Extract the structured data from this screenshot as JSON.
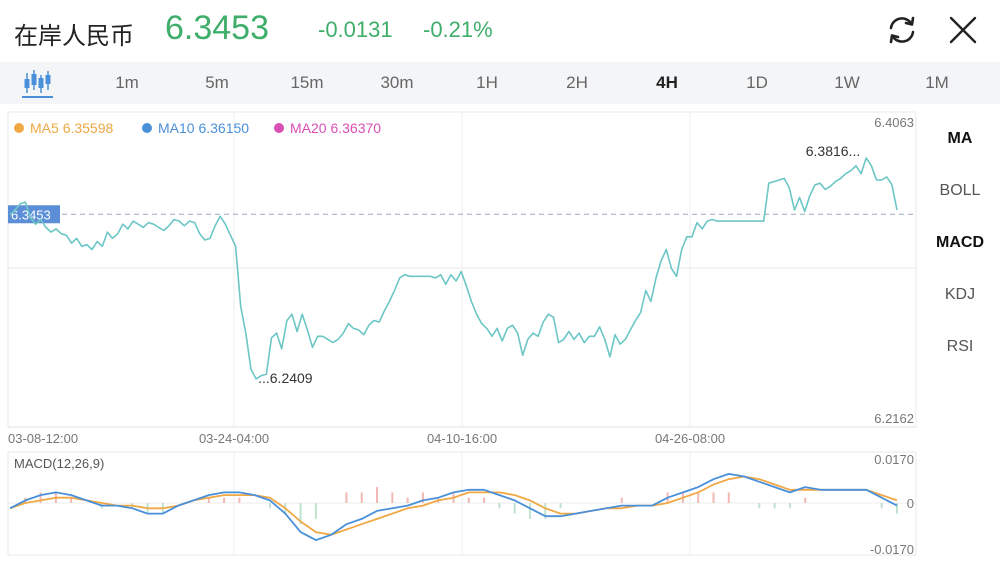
{
  "header": {
    "title": "在岸人民币",
    "price": "6.3453",
    "change": "-0.0131",
    "change_pct": "-0.21%",
    "refresh_icon": "refresh-icon",
    "close_icon": "close-icon"
  },
  "tabs": {
    "candle_icon": "candlestick-icon",
    "items": [
      "1m",
      "5m",
      "15m",
      "30m",
      "1H",
      "2H",
      "4H",
      "1D",
      "1W",
      "1M"
    ],
    "active": "4H"
  },
  "indicators": {
    "items": [
      "MA",
      "BOLL",
      "MACD",
      "KDJ",
      "RSI"
    ],
    "active": [
      "MA",
      "MACD"
    ]
  },
  "colors": {
    "up_green": "#3fae6a",
    "price_line": "#6cc6c6",
    "ma5": "#f0a845",
    "ma10": "#4a90d9",
    "ma20": "#d94fb5",
    "current_price_tag": "#5b8ed6"
  },
  "chart_data": [
    {
      "type": "line",
      "legend": [
        {
          "name": "MA5",
          "value": "6.35598"
        },
        {
          "name": "MA10",
          "value": "6.36150"
        },
        {
          "name": "MA20",
          "value": "6.36370"
        }
      ],
      "ylim": [
        6.2162,
        6.4063
      ],
      "ylim_labels": [
        "6.4063",
        "6.2162"
      ],
      "current_price_label": "6.3453",
      "x_tick_labels": [
        "03-08-12:00",
        "03-24-04:00",
        "04-10-16:00",
        "04-26-08:00"
      ],
      "annotations": {
        "high": "6.3816...",
        "low": "...6.2409"
      },
      "series": [
        {
          "values": [
            6.345,
            6.348,
            6.352,
            6.353,
            6.343,
            6.339,
            6.342,
            6.337,
            6.334,
            6.336,
            6.333,
            6.332,
            6.327,
            6.33,
            6.325,
            6.326,
            6.323,
            6.328,
            6.325,
            6.334,
            6.33,
            6.333,
            6.339,
            6.336,
            6.341,
            6.339,
            6.337,
            6.34,
            6.339,
            6.337,
            6.335,
            6.338,
            6.342,
            6.341,
            6.338,
            6.341,
            6.34,
            6.333,
            6.329,
            6.33,
            6.338,
            6.344,
            6.339,
            6.332,
            6.325,
            6.287,
            6.27,
            6.247,
            6.241,
            6.243,
            6.244,
            6.267,
            6.27,
            6.26,
            6.278,
            6.282,
            6.271,
            6.282,
            6.272,
            6.261,
            6.268,
            6.268,
            6.266,
            6.264,
            6.266,
            6.27,
            6.276,
            6.273,
            6.272,
            6.269,
            6.275,
            6.278,
            6.277,
            6.284,
            6.29,
            6.297,
            6.305,
            6.307,
            6.306,
            6.306,
            6.306,
            6.306,
            6.306,
            6.305,
            6.307,
            6.301,
            6.307,
            6.303,
            6.309,
            6.3,
            6.29,
            6.282,
            6.276,
            6.273,
            6.268,
            6.273,
            6.265,
            6.273,
            6.275,
            6.27,
            6.256,
            6.266,
            6.27,
            6.268,
            6.277,
            6.282,
            6.28,
            6.264,
            6.266,
            6.271,
            6.266,
            6.27,
            6.264,
            6.268,
            6.268,
            6.274,
            6.266,
            6.255,
            6.269,
            6.263,
            6.266,
            6.272,
            6.278,
            6.283,
            6.297,
            6.29,
            6.305,
            6.316,
            6.323,
            6.311,
            6.306,
            6.323,
            6.331,
            6.331,
            6.34,
            6.336,
            6.341,
            6.342,
            6.341,
            6.341,
            6.341,
            6.341,
            6.341,
            6.341,
            6.341,
            6.341,
            6.341,
            6.341,
            6.365,
            6.366,
            6.367,
            6.368,
            6.362,
            6.348,
            6.356,
            6.347,
            6.357,
            6.364,
            6.365,
            6.361,
            6.363,
            6.366,
            6.368,
            6.371,
            6.373,
            6.376,
            6.371,
            6.381,
            6.376,
            6.367,
            6.367,
            6.369,
            6.364,
            6.348
          ]
        }
      ]
    },
    {
      "type": "line",
      "title": "MACD(12,26,9)",
      "ylim": [
        -0.017,
        0.017
      ],
      "tick_labels": [
        "0.0170",
        "0",
        "-0.0170"
      ],
      "series": [
        {
          "name": "DIF",
          "values": [
            -0.002,
            0.001,
            0.003,
            0.004,
            0.003,
            0.001,
            -0.001,
            -0.001,
            -0.002,
            -0.004,
            -0.004,
            -0.001,
            0.001,
            0.003,
            0.004,
            0.004,
            0.003,
            0.001,
            -0.004,
            -0.011,
            -0.014,
            -0.012,
            -0.008,
            -0.006,
            -0.003,
            -0.002,
            -0.001,
            0.001,
            0.002,
            0.004,
            0.005,
            0.005,
            0.003,
            0.001,
            -0.002,
            -0.005,
            -0.005,
            -0.004,
            -0.003,
            -0.002,
            -0.001,
            -0.001,
            -0.001,
            0.002,
            0.004,
            0.006,
            0.009,
            0.011,
            0.01,
            0.008,
            0.006,
            0.004,
            0.006,
            0.005,
            0.005,
            0.005,
            0.005,
            0.002,
            -0.001
          ]
        },
        {
          "name": "DEA",
          "values": [
            -0.002,
            0.0,
            0.001,
            0.002,
            0.002,
            0.001,
            0.0,
            -0.001,
            -0.001,
            -0.002,
            -0.002,
            -0.001,
            0.001,
            0.002,
            0.003,
            0.003,
            0.003,
            0.002,
            -0.002,
            -0.007,
            -0.011,
            -0.012,
            -0.01,
            -0.008,
            -0.006,
            -0.004,
            -0.002,
            -0.001,
            0.001,
            0.002,
            0.004,
            0.004,
            0.004,
            0.003,
            0.001,
            -0.002,
            -0.004,
            -0.004,
            -0.003,
            -0.002,
            -0.002,
            -0.001,
            -0.001,
            0.0,
            0.002,
            0.004,
            0.007,
            0.009,
            0.01,
            0.009,
            0.007,
            0.005,
            0.005,
            0.005,
            0.005,
            0.005,
            0.005,
            0.003,
            0.001
          ]
        }
      ]
    }
  ]
}
